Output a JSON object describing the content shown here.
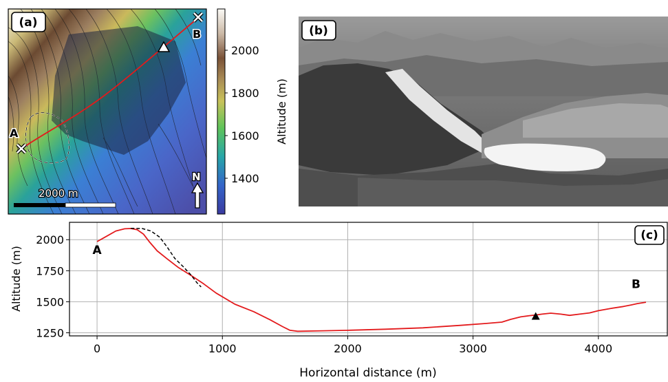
{
  "panel_a": {
    "label": "(a)",
    "point_a": "A",
    "point_b": "B",
    "scalebar": "2000 m",
    "north": "N"
  },
  "colorbar": {
    "label": "Altitude (m)",
    "ticks": [
      "2000",
      "1800",
      "1600",
      "1400"
    ]
  },
  "panel_b": {
    "label": "(b)"
  },
  "chart_data": {
    "type": "line",
    "panel_label": "(c)",
    "xlabel": "Horizontal distance (m)",
    "ylabel": "Altitude (m)",
    "xlim": [
      -220,
      4550
    ],
    "ylim": [
      1225,
      2140
    ],
    "xticks": [
      0,
      1000,
      2000,
      3000,
      4000
    ],
    "yticks": [
      1250,
      1500,
      1750,
      2000
    ],
    "grid": true,
    "series": [
      {
        "name": "",
        "color": "#e31a1c",
        "style": "solid",
        "x": [
          0,
          80,
          150,
          220,
          270,
          320,
          370,
          420,
          480,
          560,
          650,
          760,
          850,
          950,
          1100,
          1250,
          1380,
          1480,
          1540,
          1600,
          1800,
          2000,
          2300,
          2600,
          2900,
          3100,
          3230,
          3300,
          3380,
          3450,
          3500,
          3550,
          3620,
          3700,
          3770,
          3850,
          3930,
          4000,
          4100,
          4200,
          4260,
          4310,
          4380
        ],
        "y": [
          1985,
          2030,
          2070,
          2088,
          2090,
          2080,
          2045,
          1980,
          1910,
          1845,
          1775,
          1705,
          1645,
          1570,
          1480,
          1420,
          1355,
          1300,
          1270,
          1262,
          1266,
          1270,
          1279,
          1290,
          1310,
          1325,
          1336,
          1358,
          1378,
          1388,
          1393,
          1400,
          1408,
          1400,
          1390,
          1400,
          1410,
          1428,
          1446,
          1462,
          1474,
          1485,
          1496
        ]
      },
      {
        "name": "",
        "color": "#000000",
        "style": "dashed",
        "x": [
          270,
          360,
          430,
          500,
          560,
          620,
          690,
          750,
          800,
          830
        ],
        "y": [
          2092,
          2090,
          2070,
          2020,
          1940,
          1850,
          1780,
          1715,
          1650,
          1620
        ]
      }
    ],
    "annotations": [
      {
        "text": "A",
        "x": 0,
        "y": 1885
      },
      {
        "text": "B",
        "x": 4300,
        "y": 1610
      }
    ],
    "marker": {
      "shape": "triangle",
      "x": 3500,
      "y": 1383
    }
  }
}
